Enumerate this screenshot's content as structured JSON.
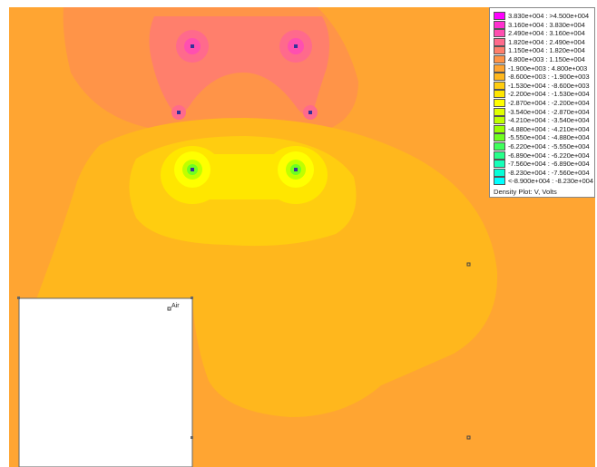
{
  "plot": {
    "background_color": "#ffa532",
    "region_label": "Air"
  },
  "legend": {
    "caption": "Density Plot: V, Volts",
    "entries": [
      {
        "label": "3.830e+004 : >4.500e+004",
        "color": "#ff00ff"
      },
      {
        "label": "3.160e+004 : 3.830e+004",
        "color": "#ff2fcf"
      },
      {
        "label": "2.490e+004 : 3.160e+004",
        "color": "#ff4fb0"
      },
      {
        "label": "1.820e+004 : 2.490e+004",
        "color": "#ff6a8c"
      },
      {
        "label": "1.150e+004 : 1.820e+004",
        "color": "#ff7f6c"
      },
      {
        "label": "4.800e+003 : 1.150e+004",
        "color": "#ff9448"
      },
      {
        "label": "-1.900e+003 : 4.800e+003",
        "color": "#ffa532"
      },
      {
        "label": "-8.600e+003 : -1.900e+003",
        "color": "#ffb71d"
      },
      {
        "label": "-1.530e+004 : -8.600e+003",
        "color": "#ffcd10"
      },
      {
        "label": "-2.200e+004 : -1.530e+004",
        "color": "#ffe600"
      },
      {
        "label": "-2.870e+004 : -2.200e+004",
        "color": "#ffff00"
      },
      {
        "label": "-3.540e+004 : -2.870e+004",
        "color": "#e0ff00"
      },
      {
        "label": "-4.210e+004 : -3.540e+004",
        "color": "#bfff00"
      },
      {
        "label": "-4.880e+004 : -4.210e+004",
        "color": "#9cff00"
      },
      {
        "label": "-5.550e+004 : -4.880e+004",
        "color": "#6fff20"
      },
      {
        "label": "-6.220e+004 : -5.550e+004",
        "color": "#3fff5c"
      },
      {
        "label": "-6.890e+004 : -6.220e+004",
        "color": "#27ff8a"
      },
      {
        "label": "-7.560e+004 : -6.890e+004",
        "color": "#14ffb8"
      },
      {
        "label": "-8.230e+004 : -7.560e+004",
        "color": "#06ffd8"
      },
      {
        "label": "<-8.900e+004 : -8.230e+004",
        "color": "#00ffff"
      }
    ]
  }
}
